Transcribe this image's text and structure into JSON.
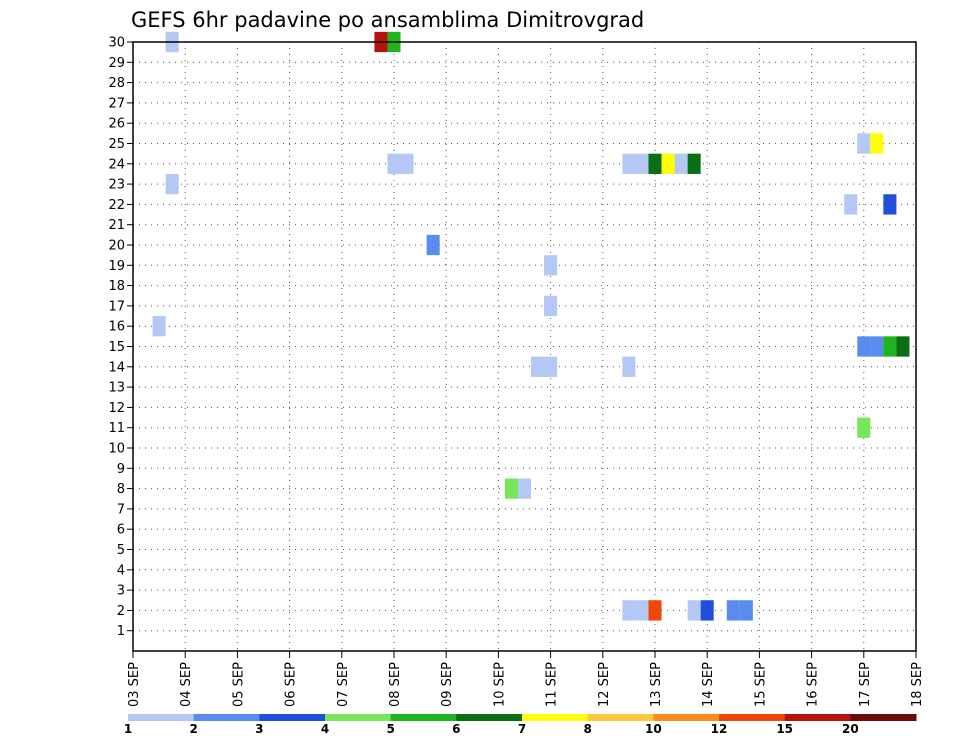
{
  "chart_data": {
    "type": "heatmap",
    "title": "GEFS 6hr padavine po ansamblima Dimitrovgrad",
    "y_ticks": [
      "1",
      "2",
      "3",
      "4",
      "5",
      "6",
      "7",
      "8",
      "9",
      "10",
      "11",
      "12",
      "13",
      "14",
      "15",
      "16",
      "17",
      "18",
      "19",
      "20",
      "21",
      "22",
      "23",
      "24",
      "25",
      "26",
      "27",
      "28",
      "29",
      "30"
    ],
    "x_ticks": [
      "03 SEP",
      "04 SEP",
      "05 SEP",
      "06 SEP",
      "07 SEP",
      "08 SEP",
      "09 SEP",
      "10 SEP",
      "11 SEP",
      "12 SEP",
      "13 SEP",
      "14 SEP",
      "15 SEP",
      "16 SEP",
      "17 SEP",
      "18 SEP"
    ],
    "ylim": [
      0,
      30
    ],
    "grid": "dotted",
    "colorbar": {
      "labels": [
        "1",
        "2",
        "3",
        "4",
        "5",
        "6",
        "7",
        "8",
        "10",
        "12",
        "15",
        "20"
      ],
      "colors": [
        "#b4c8f5",
        "#5a8cf0",
        "#1e50dc",
        "#78e65a",
        "#1eb41e",
        "#0a6e14",
        "#ffff00",
        "#ffc83c",
        "#ff8c1e",
        "#f0460a",
        "#b4140a",
        "#6e0a0a"
      ]
    },
    "cells": [
      {
        "member": 30,
        "day": 3.75,
        "category": 1
      },
      {
        "member": 30,
        "day": 7.75,
        "category": 11
      },
      {
        "member": 30,
        "day": 8.0,
        "category": 5
      },
      {
        "member": 24,
        "day": 8.0,
        "category": 1
      },
      {
        "member": 24,
        "day": 8.25,
        "category": 1
      },
      {
        "member": 23,
        "day": 3.75,
        "category": 1
      },
      {
        "member": 20,
        "day": 8.75,
        "category": 2
      },
      {
        "member": 19,
        "day": 11.0,
        "category": 1
      },
      {
        "member": 17,
        "day": 11.0,
        "category": 1
      },
      {
        "member": 16,
        "day": 3.5,
        "category": 1
      },
      {
        "member": 14,
        "day": 10.75,
        "category": 1
      },
      {
        "member": 14,
        "day": 11.0,
        "category": 1
      },
      {
        "member": 14,
        "day": 12.5,
        "category": 1
      },
      {
        "member": 8,
        "day": 10.25,
        "category": 4
      },
      {
        "member": 8,
        "day": 10.5,
        "category": 1
      },
      {
        "member": 24,
        "day": 12.5,
        "category": 1
      },
      {
        "member": 24,
        "day": 12.75,
        "category": 1
      },
      {
        "member": 24,
        "day": 13.0,
        "category": 6
      },
      {
        "member": 24,
        "day": 13.25,
        "category": 7
      },
      {
        "member": 24,
        "day": 13.5,
        "category": 1
      },
      {
        "member": 24,
        "day": 13.75,
        "category": 6
      },
      {
        "member": 2,
        "day": 12.5,
        "category": 1
      },
      {
        "member": 2,
        "day": 12.75,
        "category": 1
      },
      {
        "member": 2,
        "day": 13.0,
        "category": 10
      },
      {
        "member": 2,
        "day": 13.75,
        "category": 1
      },
      {
        "member": 2,
        "day": 14.0,
        "category": 3
      },
      {
        "member": 2,
        "day": 14.5,
        "category": 2
      },
      {
        "member": 2,
        "day": 14.75,
        "category": 2
      },
      {
        "member": 25,
        "day": 17.0,
        "category": 1
      },
      {
        "member": 25,
        "day": 17.25,
        "category": 7
      },
      {
        "member": 22,
        "day": 16.75,
        "category": 1
      },
      {
        "member": 22,
        "day": 17.5,
        "category": 3
      },
      {
        "member": 15,
        "day": 17.0,
        "category": 2
      },
      {
        "member": 15,
        "day": 17.25,
        "category": 2
      },
      {
        "member": 15,
        "day": 17.5,
        "category": 5
      },
      {
        "member": 15,
        "day": 17.75,
        "category": 6
      },
      {
        "member": 11,
        "day": 17.0,
        "category": 4
      }
    ]
  }
}
